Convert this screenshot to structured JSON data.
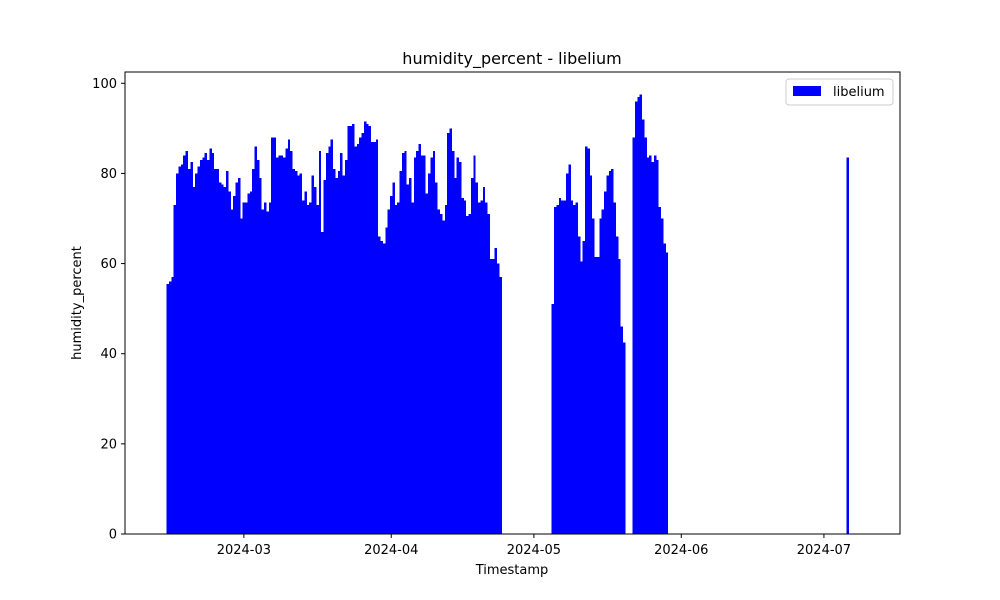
{
  "chart_data": {
    "type": "bar",
    "title": "humidity_percent - libelium",
    "xlabel": "Timestamp",
    "ylabel": "humidity_percent",
    "xlim": [
      "2024-02-05",
      "2024-07-17"
    ],
    "ylim": [
      0,
      102.5
    ],
    "grid": false,
    "legend_position": "top-right",
    "color": "#0000ff",
    "x_ticks": [
      {
        "date": "2024-03-01",
        "label": "2024-03"
      },
      {
        "date": "2024-04-01",
        "label": "2024-04"
      },
      {
        "date": "2024-05-01",
        "label": "2024-05"
      },
      {
        "date": "2024-06-01",
        "label": "2024-06"
      },
      {
        "date": "2024-07-01",
        "label": "2024-07"
      }
    ],
    "y_ticks": [
      0,
      20,
      40,
      60,
      80,
      100
    ],
    "bar_width_days": 0.5,
    "series": [
      {
        "name": "libelium",
        "points": [
          [
            "2024-02-14",
            55.5
          ],
          [
            "2024-02-14T12:00",
            56
          ],
          [
            "2024-02-15",
            57
          ],
          [
            "2024-02-15T12:00",
            73
          ],
          [
            "2024-02-16",
            80
          ],
          [
            "2024-02-16T12:00",
            81.5
          ],
          [
            "2024-02-17",
            82
          ],
          [
            "2024-02-17T12:00",
            84
          ],
          [
            "2024-02-18",
            85
          ],
          [
            "2024-02-18T12:00",
            81
          ],
          [
            "2024-02-19",
            82.5
          ],
          [
            "2024-02-19T12:00",
            77
          ],
          [
            "2024-02-20",
            80
          ],
          [
            "2024-02-20T12:00",
            81.5
          ],
          [
            "2024-02-21",
            83
          ],
          [
            "2024-02-21T12:00",
            83.5
          ],
          [
            "2024-02-22",
            84.5
          ],
          [
            "2024-02-22T12:00",
            83
          ],
          [
            "2024-02-23",
            85.5
          ],
          [
            "2024-02-23T12:00",
            84.5
          ],
          [
            "2024-02-24",
            81
          ],
          [
            "2024-02-24T12:00",
            81
          ],
          [
            "2024-02-25",
            78
          ],
          [
            "2024-02-25T12:00",
            77.5
          ],
          [
            "2024-02-26",
            77
          ],
          [
            "2024-02-26T12:00",
            80.5
          ],
          [
            "2024-02-27",
            76
          ],
          [
            "2024-02-27T12:00",
            72
          ],
          [
            "2024-02-28",
            75
          ],
          [
            "2024-02-28T12:00",
            78
          ],
          [
            "2024-02-29",
            79
          ],
          [
            "2024-02-29T12:00",
            70
          ],
          [
            "2024-03-01",
            73.5
          ],
          [
            "2024-03-01T12:00",
            73.5
          ],
          [
            "2024-03-02",
            75.5
          ],
          [
            "2024-03-02T12:00",
            76
          ],
          [
            "2024-03-03",
            81
          ],
          [
            "2024-03-03T12:00",
            86
          ],
          [
            "2024-03-04",
            83
          ],
          [
            "2024-03-04T12:00",
            79
          ],
          [
            "2024-03-05",
            72
          ],
          [
            "2024-03-05T12:00",
            73.5
          ],
          [
            "2024-03-06",
            71.5
          ],
          [
            "2024-03-06T12:00",
            73.5
          ],
          [
            "2024-03-07",
            88
          ],
          [
            "2024-03-07T12:00",
            88
          ],
          [
            "2024-03-08",
            83.5
          ],
          [
            "2024-03-08T12:00",
            84
          ],
          [
            "2024-03-09",
            84
          ],
          [
            "2024-03-09T12:00",
            83.5
          ],
          [
            "2024-03-10",
            85.5
          ],
          [
            "2024-03-10T12:00",
            87.5
          ],
          [
            "2024-03-11",
            85
          ],
          [
            "2024-03-11T12:00",
            81
          ],
          [
            "2024-03-12",
            80.5
          ],
          [
            "2024-03-12T12:00",
            79.5
          ],
          [
            "2024-03-13",
            80
          ],
          [
            "2024-03-13T12:00",
            74
          ],
          [
            "2024-03-14",
            76
          ],
          [
            "2024-03-14T12:00",
            73
          ],
          [
            "2024-03-15",
            73.5
          ],
          [
            "2024-03-15T12:00",
            79.5
          ],
          [
            "2024-03-16",
            77
          ],
          [
            "2024-03-16T12:00",
            73
          ],
          [
            "2024-03-17",
            85
          ],
          [
            "2024-03-17T12:00",
            67
          ],
          [
            "2024-03-18",
            78.5
          ],
          [
            "2024-03-18T12:00",
            84.5
          ],
          [
            "2024-03-19",
            86
          ],
          [
            "2024-03-19T12:00",
            87.5
          ],
          [
            "2024-03-20",
            81
          ],
          [
            "2024-03-20T12:00",
            79
          ],
          [
            "2024-03-21",
            80.5
          ],
          [
            "2024-03-21T12:00",
            84.5
          ],
          [
            "2024-03-22",
            79.5
          ],
          [
            "2024-03-22T12:00",
            83
          ],
          [
            "2024-03-23",
            90.5
          ],
          [
            "2024-03-23T12:00",
            90.5
          ],
          [
            "2024-03-24",
            91
          ],
          [
            "2024-03-24T12:00",
            86
          ],
          [
            "2024-03-25",
            86.5
          ],
          [
            "2024-03-25T12:00",
            88
          ],
          [
            "2024-03-26",
            89
          ],
          [
            "2024-03-26T12:00",
            91.5
          ],
          [
            "2024-03-27",
            91
          ],
          [
            "2024-03-27T12:00",
            90.5
          ],
          [
            "2024-03-28",
            87
          ],
          [
            "2024-03-28T12:00",
            87
          ],
          [
            "2024-03-29",
            87.5
          ],
          [
            "2024-03-29T12:00",
            66
          ],
          [
            "2024-03-30",
            65
          ],
          [
            "2024-03-30T12:00",
            64.5
          ],
          [
            "2024-03-31",
            68
          ],
          [
            "2024-03-31T12:00",
            72
          ],
          [
            "2024-04-01",
            75
          ],
          [
            "2024-04-01T12:00",
            78
          ],
          [
            "2024-04-02",
            73
          ],
          [
            "2024-04-02T12:00",
            73.5
          ],
          [
            "2024-04-03",
            80.5
          ],
          [
            "2024-04-03T12:00",
            84.5
          ],
          [
            "2024-04-04",
            85
          ],
          [
            "2024-04-04T12:00",
            77.5
          ],
          [
            "2024-04-05",
            79
          ],
          [
            "2024-04-05T12:00",
            73.5
          ],
          [
            "2024-04-06",
            83.5
          ],
          [
            "2024-04-06T12:00",
            85
          ],
          [
            "2024-04-07",
            86.5
          ],
          [
            "2024-04-07T12:00",
            84
          ],
          [
            "2024-04-08",
            84
          ],
          [
            "2024-04-08T12:00",
            75.5
          ],
          [
            "2024-04-09",
            80
          ],
          [
            "2024-04-09T12:00",
            83.5
          ],
          [
            "2024-04-10",
            85
          ],
          [
            "2024-04-10T12:00",
            78
          ],
          [
            "2024-04-11",
            72
          ],
          [
            "2024-04-11T12:00",
            71
          ],
          [
            "2024-04-12",
            69.5
          ],
          [
            "2024-04-12T12:00",
            73
          ],
          [
            "2024-04-13",
            89
          ],
          [
            "2024-04-13T12:00",
            90
          ],
          [
            "2024-04-14",
            85
          ],
          [
            "2024-04-14T12:00",
            79
          ],
          [
            "2024-04-15",
            83.5
          ],
          [
            "2024-04-15T12:00",
            82.5
          ],
          [
            "2024-04-16",
            74.5
          ],
          [
            "2024-04-16T12:00",
            74
          ],
          [
            "2024-04-17",
            70.5
          ],
          [
            "2024-04-17T12:00",
            71
          ],
          [
            "2024-04-18",
            79
          ],
          [
            "2024-04-18T12:00",
            84
          ],
          [
            "2024-04-19",
            78
          ],
          [
            "2024-04-19T12:00",
            73.5
          ],
          [
            "2024-04-20",
            74
          ],
          [
            "2024-04-20T12:00",
            77
          ],
          [
            "2024-04-21",
            73.5
          ],
          [
            "2024-04-21T12:00",
            71
          ],
          [
            "2024-04-22",
            61
          ],
          [
            "2024-04-22T12:00",
            61
          ],
          [
            "2024-04-23",
            63.5
          ],
          [
            "2024-04-23T12:00",
            60
          ],
          [
            "2024-04-24",
            57
          ],
          [
            "2024-05-05",
            51
          ],
          [
            "2024-05-05T12:00",
            72.5
          ],
          [
            "2024-05-06",
            73
          ],
          [
            "2024-05-06T12:00",
            74.5
          ],
          [
            "2024-05-07",
            74
          ],
          [
            "2024-05-07T12:00",
            74
          ],
          [
            "2024-05-08",
            80
          ],
          [
            "2024-05-08T12:00",
            82
          ],
          [
            "2024-05-09",
            74
          ],
          [
            "2024-05-09T12:00",
            73
          ],
          [
            "2024-05-10",
            73.5
          ],
          [
            "2024-05-10T12:00",
            66
          ],
          [
            "2024-05-11",
            60.5
          ],
          [
            "2024-05-11T12:00",
            65
          ],
          [
            "2024-05-12",
            86
          ],
          [
            "2024-05-12T12:00",
            85.5
          ],
          [
            "2024-05-13",
            79.5
          ],
          [
            "2024-05-13T12:00",
            70
          ],
          [
            "2024-05-14",
            61.5
          ],
          [
            "2024-05-14T12:00",
            61.5
          ],
          [
            "2024-05-15",
            70
          ],
          [
            "2024-05-15T12:00",
            72
          ],
          [
            "2024-05-16",
            76
          ],
          [
            "2024-05-16T12:00",
            79.5
          ],
          [
            "2024-05-17",
            80.5
          ],
          [
            "2024-05-17T12:00",
            81
          ],
          [
            "2024-05-18",
            73.5
          ],
          [
            "2024-05-18T12:00",
            66
          ],
          [
            "2024-05-19",
            61
          ],
          [
            "2024-05-19T12:00",
            46
          ],
          [
            "2024-05-20",
            42.5
          ],
          [
            "2024-05-22",
            88
          ],
          [
            "2024-05-22T12:00",
            96
          ],
          [
            "2024-05-23",
            97
          ],
          [
            "2024-05-23T12:00",
            97.5
          ],
          [
            "2024-05-24",
            92
          ],
          [
            "2024-05-24T12:00",
            88
          ],
          [
            "2024-05-25",
            83.5
          ],
          [
            "2024-05-25T12:00",
            84
          ],
          [
            "2024-05-26",
            82.5
          ],
          [
            "2024-05-26T12:00",
            84
          ],
          [
            "2024-05-27",
            83
          ],
          [
            "2024-05-27T12:00",
            72.5
          ],
          [
            "2024-05-28",
            70
          ],
          [
            "2024-05-28T12:00",
            64.5
          ],
          [
            "2024-05-29",
            62.5
          ],
          [
            "2024-07-06",
            83.5
          ]
        ]
      }
    ]
  }
}
